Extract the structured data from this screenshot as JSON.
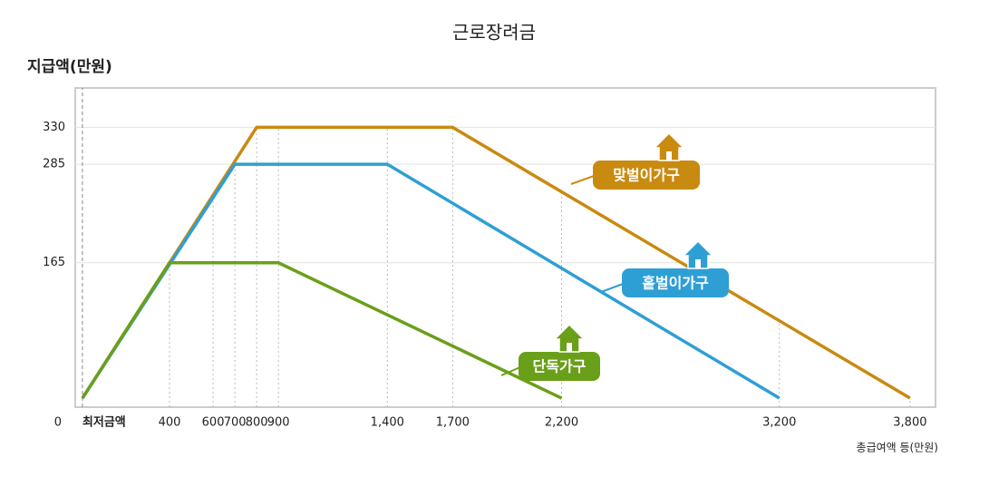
{
  "chart_data": {
    "type": "line",
    "title": "근로장려금",
    "y_label": "지급액(만원)",
    "x_label": "총급여액 등(만원)",
    "xlim": [
      -33,
      3917
    ],
    "ylim": [
      -11,
      378
    ],
    "xticks": [
      {
        "value": 0,
        "label": "최저금액"
      },
      400,
      600,
      700,
      800,
      900,
      {
        "value": 1400,
        "label": "1,400"
      },
      {
        "value": 1700,
        "label": "1,700"
      },
      {
        "value": 2200,
        "label": "2,200"
      },
      {
        "value": 3200,
        "label": "3,200"
      },
      {
        "value": 3800,
        "label": "3,800"
      }
    ],
    "yticks": [
      0,
      165,
      285,
      330
    ],
    "grid": true,
    "series": [
      {
        "name": "단독가구",
        "color": "#6a9f1a",
        "x": [
          0,
          400,
          900,
          2200
        ],
        "values": [
          0,
          165,
          165,
          0
        ]
      },
      {
        "name": "홑벌이가구",
        "color": "#2e9fd4",
        "x": [
          0,
          700,
          1400,
          3200
        ],
        "values": [
          0,
          285,
          285,
          0
        ]
      },
      {
        "name": "맞벌이가구",
        "color": "#c98a10",
        "x": [
          0,
          800,
          1700,
          3800
        ],
        "values": [
          0,
          330,
          330,
          0
        ]
      }
    ]
  }
}
